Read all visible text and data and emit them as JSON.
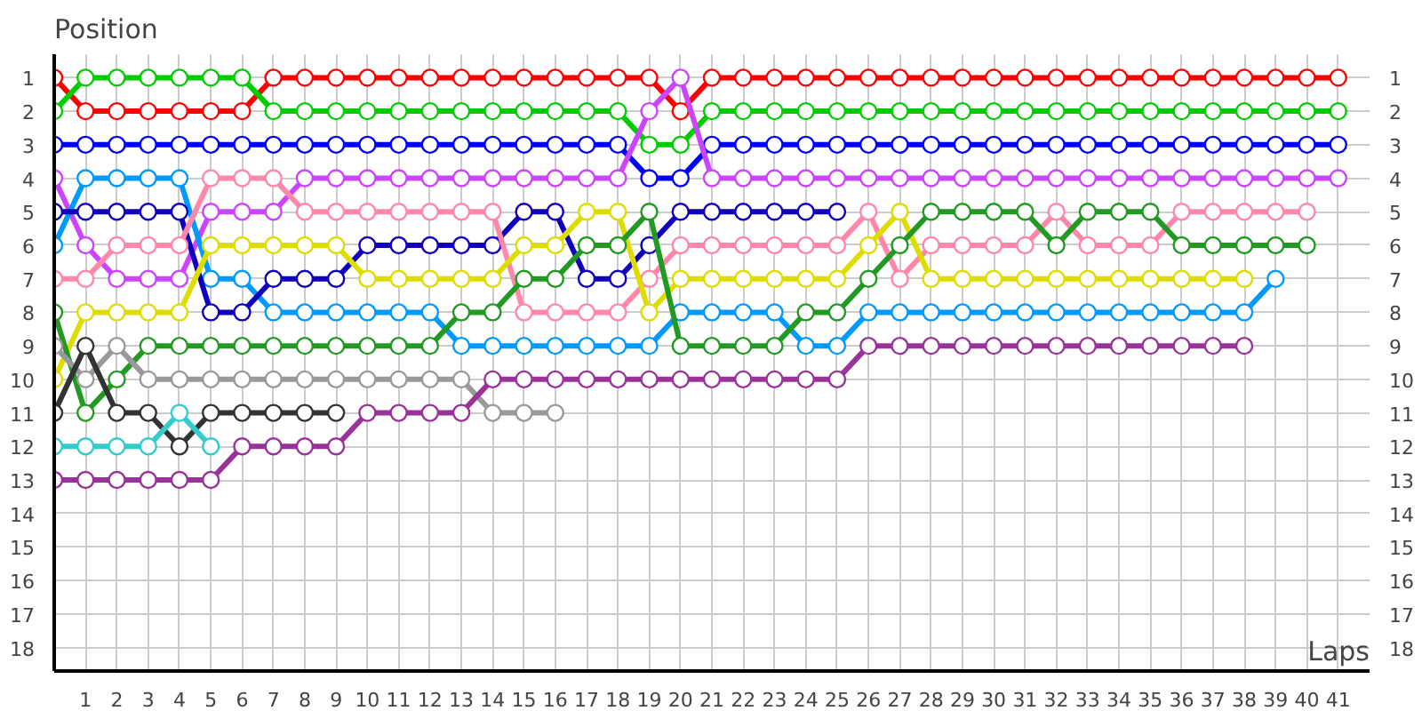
{
  "chart_data": {
    "type": "line",
    "xlabel": "Laps",
    "ylabel": "Position",
    "x": [
      0,
      1,
      2,
      3,
      4,
      5,
      6,
      7,
      8,
      9,
      10,
      11,
      12,
      13,
      14,
      15,
      16,
      17,
      18,
      19,
      20,
      21,
      22,
      23,
      24,
      25,
      26,
      27,
      28,
      29,
      30,
      31,
      32,
      33,
      34,
      35,
      36,
      37,
      38,
      39,
      40,
      41
    ],
    "xlim": [
      0,
      42
    ],
    "xticks": [
      1,
      2,
      3,
      4,
      5,
      6,
      7,
      8,
      9,
      10,
      11,
      12,
      13,
      14,
      15,
      16,
      17,
      18,
      19,
      20,
      21,
      22,
      23,
      24,
      25,
      26,
      27,
      28,
      29,
      30,
      31,
      32,
      33,
      34,
      35,
      36,
      37,
      38,
      39,
      40,
      41
    ],
    "ylim": [
      18.7,
      0.3
    ],
    "yticks": [
      1,
      2,
      3,
      4,
      5,
      6,
      7,
      8,
      9,
      10,
      11,
      12,
      13,
      14,
      15,
      16,
      17,
      18
    ],
    "y2lim": [
      18.7,
      0.3
    ],
    "y2ticks": [
      1,
      2,
      3,
      4,
      5,
      6,
      7,
      8,
      9,
      10,
      11,
      12,
      13,
      14,
      15,
      16,
      17,
      18
    ],
    "grid": true,
    "marker": "circle",
    "line_style": "solid",
    "series": [
      {
        "color": "#ff0000",
        "values": [
          1,
          2,
          2,
          2,
          2,
          2,
          2,
          1,
          1,
          1,
          1,
          1,
          1,
          1,
          1,
          1,
          1,
          1,
          1,
          1,
          2,
          1,
          1,
          1,
          1,
          1,
          1,
          1,
          1,
          1,
          1,
          1,
          1,
          1,
          1,
          1,
          1,
          1,
          1,
          1,
          1,
          1
        ]
      },
      {
        "color": "#00cc00",
        "values": [
          2,
          1,
          1,
          1,
          1,
          1,
          1,
          2,
          2,
          2,
          2,
          2,
          2,
          2,
          2,
          2,
          2,
          2,
          2,
          3,
          3,
          2,
          2,
          2,
          2,
          2,
          2,
          2,
          2,
          2,
          2,
          2,
          2,
          2,
          2,
          2,
          2,
          2,
          2,
          2,
          2,
          2
        ]
      },
      {
        "color": "#0000ff",
        "values": [
          3,
          3,
          3,
          3,
          3,
          3,
          3,
          3,
          3,
          3,
          3,
          3,
          3,
          3,
          3,
          3,
          3,
          3,
          3,
          4,
          4,
          3,
          3,
          3,
          3,
          3,
          3,
          3,
          3,
          3,
          3,
          3,
          3,
          3,
          3,
          3,
          3,
          3,
          3,
          3,
          3,
          3
        ]
      },
      {
        "color": "#cc44ff",
        "values": [
          4,
          6,
          7,
          7,
          7,
          5,
          5,
          5,
          4,
          4,
          4,
          4,
          4,
          4,
          4,
          4,
          4,
          4,
          4,
          2,
          1,
          4,
          4,
          4,
          4,
          4,
          4,
          4,
          4,
          4,
          4,
          4,
          4,
          4,
          4,
          4,
          4,
          4,
          4,
          4,
          4,
          4
        ]
      },
      {
        "color": "#0099ff",
        "values": [
          6,
          4,
          4,
          4,
          4,
          7,
          7,
          8,
          8,
          8,
          8,
          8,
          8,
          9,
          9,
          9,
          9,
          9,
          9,
          9,
          8,
          8,
          8,
          8,
          9,
          9,
          8,
          8,
          8,
          8,
          8,
          8,
          8,
          8,
          8,
          8,
          8,
          8,
          8,
          7,
          null,
          null
        ]
      },
      {
        "color": "#1100bb",
        "values": [
          5,
          5,
          5,
          5,
          5,
          8,
          8,
          7,
          7,
          7,
          6,
          6,
          6,
          6,
          6,
          5,
          5,
          7,
          7,
          6,
          5,
          5,
          5,
          5,
          5,
          5,
          null,
          null,
          null,
          null,
          null,
          null,
          null,
          null,
          null,
          null,
          null,
          null,
          null,
          null,
          null,
          null
        ]
      },
      {
        "color": "#ff88aa",
        "values": [
          7,
          7,
          6,
          6,
          6,
          4,
          4,
          4,
          5,
          5,
          5,
          5,
          5,
          5,
          5,
          8,
          8,
          8,
          8,
          7,
          6,
          6,
          6,
          6,
          6,
          6,
          5,
          7,
          6,
          6,
          6,
          6,
          5,
          6,
          6,
          6,
          5,
          5,
          5,
          5,
          5,
          null
        ]
      },
      {
        "color": "#dddd00",
        "values": [
          10,
          8,
          8,
          8,
          8,
          6,
          6,
          6,
          6,
          6,
          7,
          7,
          7,
          7,
          7,
          6,
          6,
          5,
          5,
          8,
          7,
          7,
          7,
          7,
          7,
          7,
          6,
          5,
          7,
          7,
          7,
          7,
          7,
          7,
          7,
          7,
          7,
          7,
          7,
          null,
          null,
          null
        ]
      },
      {
        "color": "#229922",
        "values": [
          8,
          11,
          10,
          9,
          9,
          9,
          9,
          9,
          9,
          9,
          9,
          9,
          9,
          8,
          8,
          7,
          7,
          6,
          6,
          5,
          9,
          9,
          9,
          9,
          8,
          8,
          7,
          6,
          5,
          5,
          5,
          5,
          6,
          5,
          5,
          5,
          6,
          6,
          6,
          6,
          6,
          null
        ]
      },
      {
        "color": "#999999",
        "values": [
          9,
          10,
          9,
          10,
          10,
          10,
          10,
          10,
          10,
          10,
          10,
          10,
          10,
          10,
          11,
          11,
          11,
          null,
          null,
          null,
          null,
          null,
          null,
          null,
          null,
          null,
          null,
          null,
          null,
          null,
          null,
          null,
          null,
          null,
          null,
          null,
          null,
          null,
          null,
          null,
          null,
          null
        ]
      },
      {
        "color": "#333333",
        "values": [
          11,
          9,
          11,
          11,
          12,
          11,
          11,
          11,
          11,
          11,
          null,
          null,
          null,
          null,
          null,
          null,
          null,
          null,
          null,
          null,
          null,
          null,
          null,
          null,
          null,
          null,
          null,
          null,
          null,
          null,
          null,
          null,
          null,
          null,
          null,
          null,
          null,
          null,
          null,
          null,
          null,
          null
        ]
      },
      {
        "color": "#33cccc",
        "values": [
          12,
          12,
          12,
          12,
          11,
          12,
          null,
          null,
          null,
          null,
          null,
          null,
          null,
          null,
          null,
          null,
          null,
          null,
          null,
          null,
          null,
          null,
          null,
          null,
          null,
          null,
          null,
          null,
          null,
          null,
          null,
          null,
          null,
          null,
          null,
          null,
          null,
          null,
          null,
          null,
          null,
          null
        ]
      },
      {
        "color": "#993399",
        "values": [
          13,
          13,
          13,
          13,
          13,
          13,
          12,
          12,
          12,
          12,
          11,
          11,
          11,
          11,
          10,
          10,
          10,
          10,
          10,
          10,
          10,
          10,
          10,
          10,
          10,
          10,
          9,
          9,
          9,
          9,
          9,
          9,
          9,
          9,
          9,
          9,
          9,
          9,
          9,
          null,
          null,
          null
        ]
      }
    ]
  }
}
